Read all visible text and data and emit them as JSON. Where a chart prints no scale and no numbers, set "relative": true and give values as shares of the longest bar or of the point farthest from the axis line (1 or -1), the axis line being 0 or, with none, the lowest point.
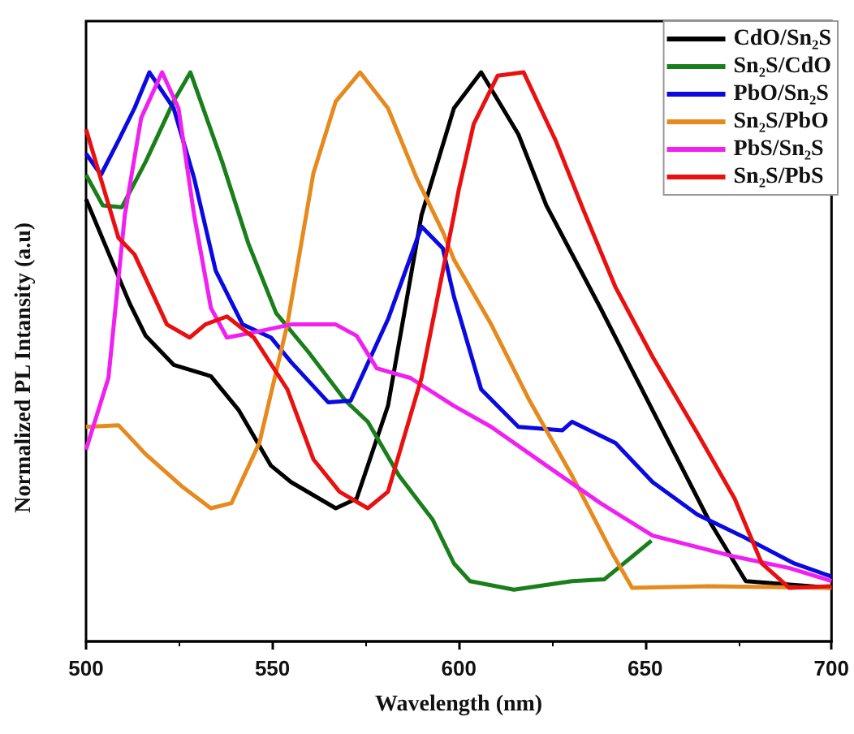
{
  "chart_data": {
    "type": "line",
    "xlabel": "Wavelength (nm)",
    "ylabel": "Normalized PL Intansity (a.u)",
    "relative": true,
    "xlim": [
      500,
      700
    ],
    "xticks": [
      500,
      550,
      600,
      650,
      700
    ],
    "legend": "top right",
    "marker": "none",
    "line_style": "solid",
    "grid": false,
    "series": [
      {
        "name": "CdO/Sn₂S",
        "color": "#000000",
        "x": [
          500,
          511.7,
          516,
          523.5,
          533.5,
          541,
          549.6,
          555,
          567,
          572.6,
          581,
          590,
          598.7,
          606,
          616,
          623.5,
          638,
          652,
          667,
          677,
          700
        ],
        "values": [
          0.777,
          0.594,
          0.537,
          0.486,
          0.466,
          0.406,
          0.309,
          0.28,
          0.234,
          0.251,
          0.414,
          0.749,
          0.937,
          1,
          0.891,
          0.766,
          0.586,
          0.406,
          0.214,
          0.106,
          0.094
        ]
      },
      {
        "name": "Sn₂S/CdO",
        "color": "#1a7f1a",
        "x": [
          500,
          504.5,
          509.6,
          516,
          523.5,
          528,
          536.5,
          543.5,
          551,
          559.6,
          569.6,
          575.6,
          584,
          593,
          598.7,
          603,
          614.8,
          630.4,
          639,
          646.5,
          651.7
        ],
        "values": [
          0.82,
          0.766,
          0.763,
          0.843,
          0.949,
          1,
          0.843,
          0.7,
          0.577,
          0.509,
          0.423,
          0.386,
          0.291,
          0.214,
          0.137,
          0.106,
          0.091,
          0.106,
          0.109,
          0.149,
          0.177
        ]
      },
      {
        "name": "PbO/Sn₂S",
        "color": "#0a0ae0",
        "x": [
          500,
          504,
          508.7,
          513,
          517,
          523.5,
          529,
          534.8,
          542,
          549.6,
          555,
          565,
          571,
          581,
          590,
          595.7,
          598.7,
          606,
          616,
          627.8,
          630.4,
          642,
          652,
          664,
          675.7,
          690,
          700
        ],
        "values": [
          0.857,
          0.82,
          0.88,
          0.937,
          1,
          0.937,
          0.814,
          0.651,
          0.557,
          0.534,
          0.491,
          0.42,
          0.423,
          0.566,
          0.729,
          0.691,
          0.606,
          0.443,
          0.377,
          0.371,
          0.386,
          0.349,
          0.28,
          0.223,
          0.186,
          0.137,
          0.114
        ]
      },
      {
        "name": "Sn₂S/PbO",
        "color": "#e68a1e",
        "x": [
          500,
          508.7,
          516,
          526,
          533.5,
          539,
          546.5,
          554,
          561,
          567,
          573.5,
          581,
          588.7,
          595.7,
          598.7,
          608.7,
          619,
          630.4,
          641,
          646.5,
          667,
          700
        ],
        "values": [
          0.377,
          0.38,
          0.329,
          0.271,
          0.234,
          0.243,
          0.349,
          0.557,
          0.823,
          0.949,
          1,
          0.937,
          0.814,
          0.72,
          0.671,
          0.557,
          0.423,
          0.291,
          0.157,
          0.094,
          0.097,
          0.094
        ]
      },
      {
        "name": "PbS/Sn₂S",
        "color": "#f020f0",
        "x": [
          500,
          506,
          510.4,
          514.8,
          520.4,
          524.8,
          529,
          533.5,
          537.8,
          545,
          555,
          567,
          572.6,
          578,
          587,
          598.7,
          608.7,
          623.5,
          638,
          652,
          674,
          688.7,
          700
        ],
        "values": [
          0.337,
          0.463,
          0.749,
          0.92,
          1,
          0.937,
          0.749,
          0.586,
          0.534,
          0.543,
          0.557,
          0.557,
          0.537,
          0.48,
          0.463,
          0.414,
          0.377,
          0.309,
          0.243,
          0.186,
          0.149,
          0.129,
          0.106
        ]
      },
      {
        "name": "Sn₂S/PbS",
        "color": "#e81010",
        "x": [
          500,
          508.7,
          513,
          521.7,
          527.8,
          532,
          537.8,
          545,
          554,
          561,
          568,
          575.6,
          581,
          590,
          598.7,
          600,
          604,
          610.4,
          617.4,
          626,
          633.5,
          642,
          652,
          664,
          674,
          681.3,
          688.7,
          700
        ],
        "values": [
          0.9,
          0.709,
          0.68,
          0.557,
          0.534,
          0.557,
          0.571,
          0.534,
          0.443,
          0.32,
          0.263,
          0.234,
          0.263,
          0.463,
          0.749,
          0.794,
          0.909,
          0.994,
          1,
          0.88,
          0.757,
          0.623,
          0.5,
          0.366,
          0.251,
          0.137,
          0.094,
          0.097
        ]
      }
    ]
  }
}
